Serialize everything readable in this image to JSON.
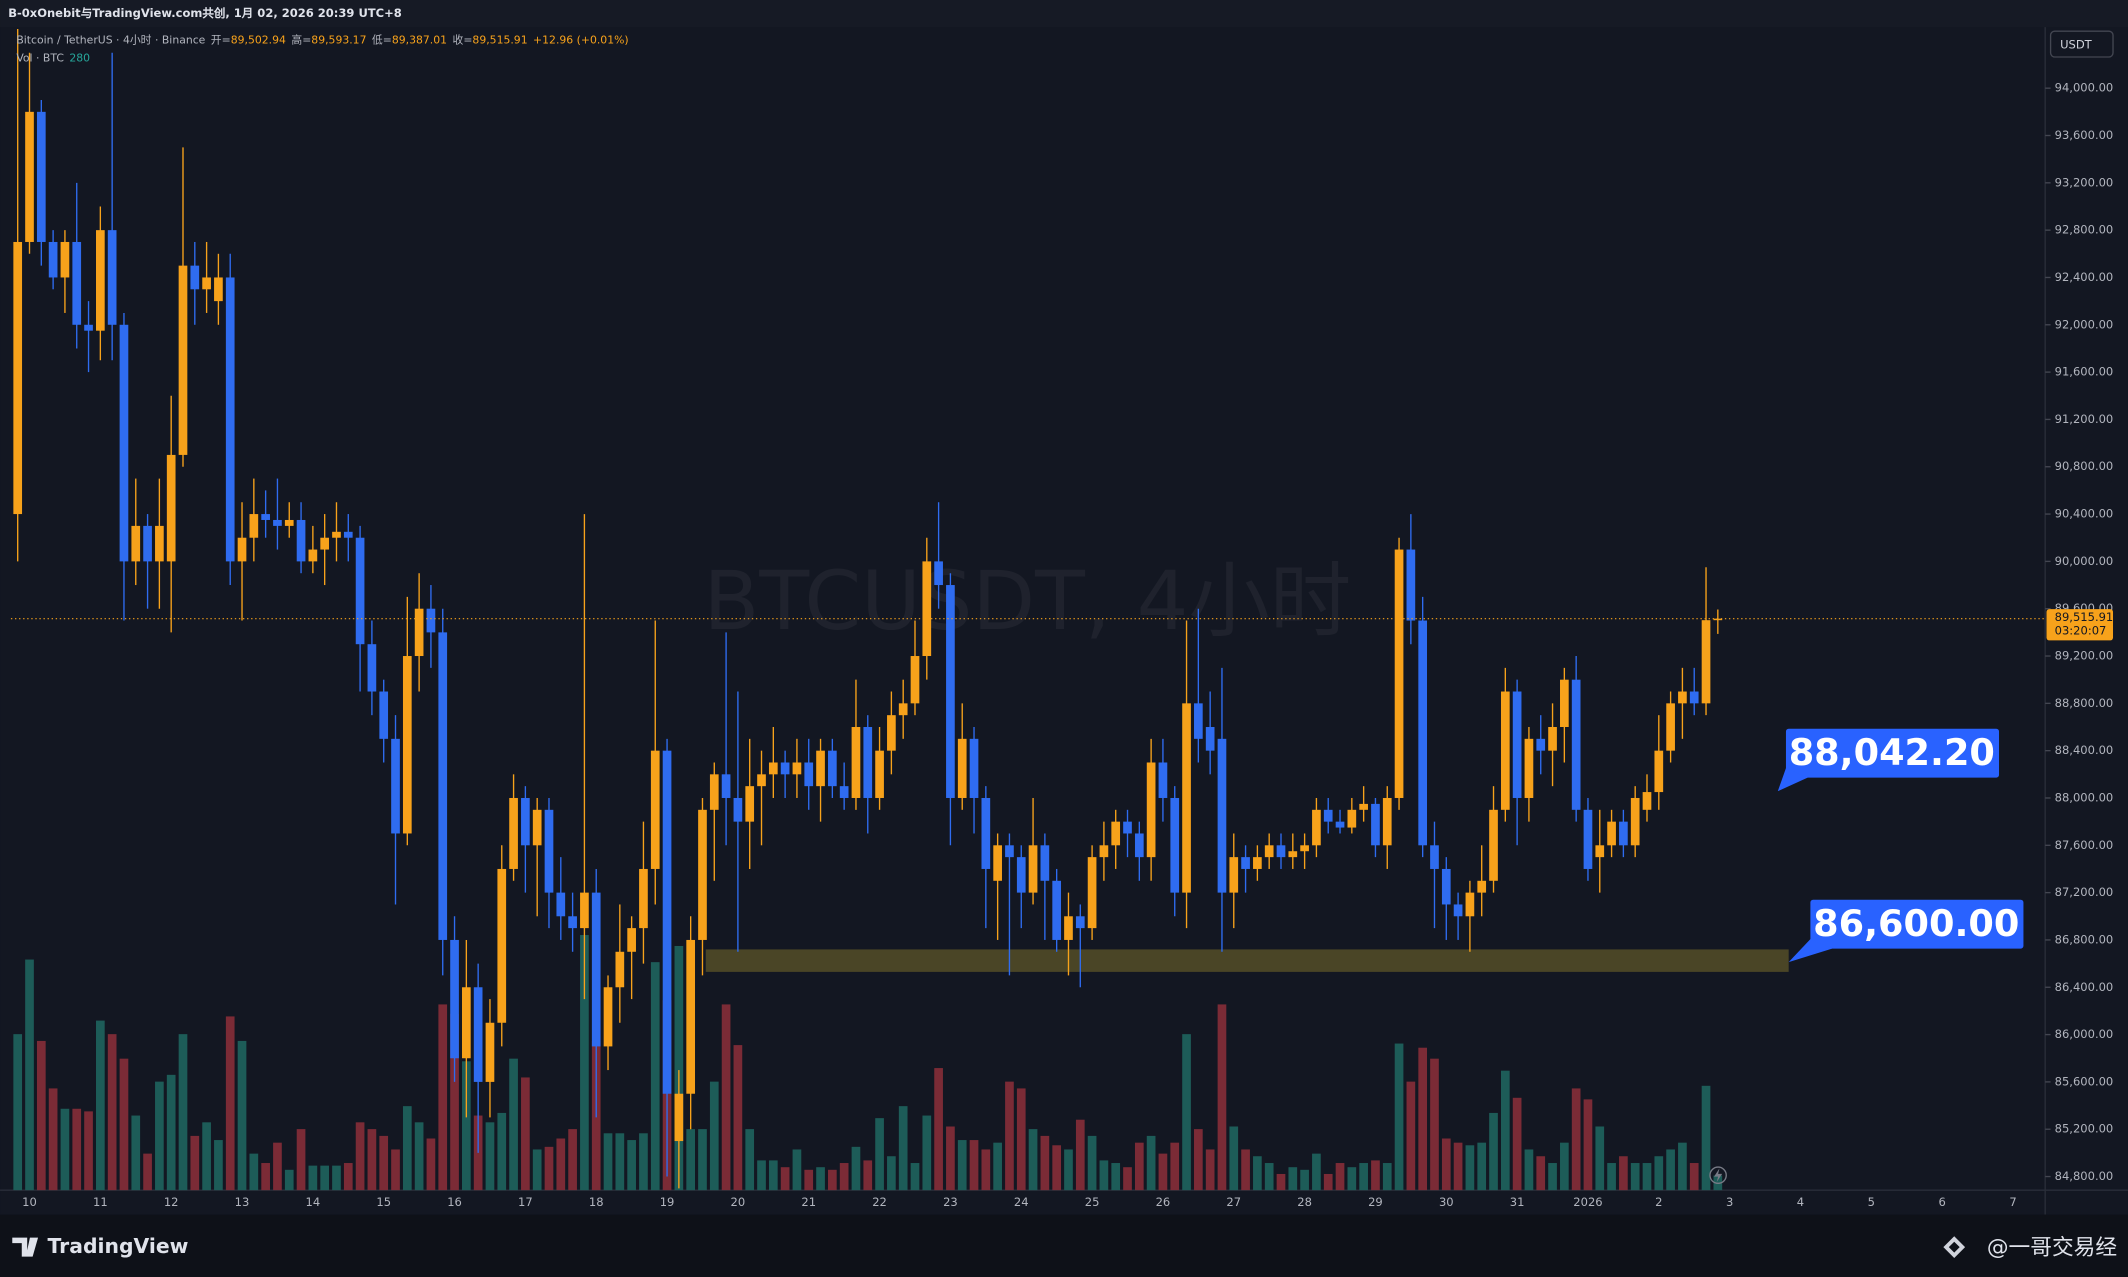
{
  "header": {
    "title": "B-0xOnebit与TradingView.com共创, 1月 02, 2026 20:39 UTC+8"
  },
  "footer": {
    "brand": "TradingView",
    "author": "@一哥交易经"
  },
  "chart_data": {
    "type": "candlestick",
    "symbol": "Bitcoin / TetherUS · 4小时 · Binance",
    "ohlc_legend": [
      {
        "label": "开=",
        "value": "89,502.94"
      },
      {
        "label": "高=",
        "value": "89,593.17"
      },
      {
        "label": "低=",
        "value": "89,387.01"
      },
      {
        "label": "收=",
        "value": "89,515.91"
      }
    ],
    "change": "+12.96 (+0.01%)",
    "volume_legend": "Vol · BTC",
    "volume_label": "280",
    "watermark": "BTCUSDT, 4小时",
    "currency": "USDT",
    "up_color": "#f7a21b",
    "down_color": "#2f6cf0",
    "volume_up_color": "#1d5c58",
    "volume_down_color": "#7b2b36",
    "categories": [
      null,
      "10",
      null,
      null,
      null,
      null,
      null,
      "11",
      null,
      null,
      null,
      null,
      null,
      "12",
      null,
      null,
      null,
      null,
      null,
      "13",
      null,
      null,
      null,
      null,
      null,
      "14",
      null,
      null,
      null,
      null,
      null,
      "15",
      null,
      null,
      null,
      null,
      null,
      "16",
      null,
      null,
      null,
      null,
      null,
      "17",
      null,
      null,
      null,
      null,
      null,
      "18",
      null,
      null,
      null,
      null,
      null,
      "19",
      null,
      null,
      null,
      null,
      null,
      "20",
      null,
      null,
      null,
      null,
      null,
      "21",
      null,
      null,
      null,
      null,
      null,
      "22",
      null,
      null,
      null,
      null,
      null,
      "23",
      null,
      null,
      null,
      null,
      null,
      "24",
      null,
      null,
      null,
      null,
      null,
      "25",
      null,
      null,
      null,
      null,
      null,
      "26",
      null,
      null,
      null,
      null,
      null,
      "27",
      null,
      null,
      null,
      null,
      null,
      "28",
      null,
      null,
      null,
      null,
      null,
      "29",
      null,
      null,
      null,
      null,
      null,
      "30",
      null,
      null,
      null,
      null,
      null,
      "31",
      null,
      null,
      null,
      null,
      null,
      "2026",
      null,
      null,
      null,
      null,
      null,
      "2",
      null,
      null,
      null,
      null,
      null,
      "3",
      null,
      null,
      null,
      null,
      null,
      "4",
      null,
      null,
      null,
      null,
      null,
      "5",
      null,
      null,
      null,
      null,
      null,
      "6",
      null,
      null,
      null,
      null,
      null,
      "7"
    ],
    "open": [
      90400,
      92700,
      93800,
      92700,
      92400,
      92700,
      92000,
      91950,
      92800,
      92000,
      90000,
      90300,
      90000,
      90000,
      90900,
      92500,
      92300,
      92200,
      92400,
      90000,
      90200,
      90400,
      90350,
      90300,
      90350,
      90000,
      90100,
      90200,
      90250,
      90200,
      89300,
      88900,
      88500,
      87700,
      89200,
      89600,
      89400,
      86800,
      85800,
      86400,
      85600,
      86100,
      87400,
      88000,
      87600,
      87900,
      87200,
      87000,
      86900,
      87200,
      85900,
      86400,
      86700,
      86900,
      87400,
      88400,
      85100,
      85500,
      86800,
      87900,
      88200,
      88000,
      87800,
      88100,
      88200,
      88300,
      88200,
      88300,
      88100,
      88400,
      88100,
      88000,
      88600,
      88000,
      88400,
      88700,
      88800,
      89200,
      90000,
      89800,
      88000,
      88500,
      88000,
      87300,
      87600,
      87500,
      87200,
      87600,
      87300,
      86800,
      87000,
      86900,
      87500,
      87600,
      87800,
      87700,
      87500,
      88300,
      88000,
      87200,
      88800,
      88600,
      88500,
      87200,
      87500,
      87400,
      87500,
      87600,
      87500,
      87550,
      87600,
      87900,
      87800,
      87750,
      87900,
      87950,
      87600,
      88000,
      90100,
      89500,
      87600,
      87400,
      87100,
      87000,
      87200,
      87300,
      87900,
      88900,
      88000,
      88500,
      88400,
      88600,
      89000,
      87900,
      87500,
      87600,
      87800,
      87600,
      87900,
      88050,
      88400,
      88800,
      88900,
      88800,
      89502.94,
      null,
      null,
      null,
      null,
      null,
      null,
      null,
      null,
      null,
      null,
      null,
      null,
      null,
      null,
      null,
      null,
      null,
      null,
      null,
      null,
      null,
      null,
      null,
      null,
      null
    ],
    "high": [
      94500,
      94300,
      93900,
      92800,
      92800,
      93200,
      92200,
      93000,
      94300,
      92100,
      90700,
      90400,
      90700,
      91400,
      93500,
      92700,
      92700,
      92600,
      92600,
      90500,
      90700,
      90600,
      90700,
      90500,
      90500,
      90300,
      90400,
      90500,
      90400,
      90300,
      89500,
      89000,
      88700,
      89700,
      89900,
      89800,
      89600,
      87000,
      86800,
      86600,
      86300,
      87600,
      88200,
      88100,
      88000,
      88000,
      87500,
      87200,
      90400,
      87400,
      86500,
      87100,
      87000,
      87800,
      89500,
      88500,
      85700,
      87000,
      88000,
      88300,
      89400,
      88900,
      88500,
      88400,
      88600,
      88400,
      88500,
      88500,
      88500,
      88500,
      88300,
      89000,
      88700,
      88600,
      88900,
      89000,
      89500,
      90200,
      90500,
      89900,
      88800,
      88600,
      88100,
      87700,
      87700,
      87600,
      88000,
      87700,
      87400,
      87200,
      87100,
      87600,
      87800,
      87900,
      87900,
      87800,
      88500,
      88500,
      88100,
      89500,
      89600,
      88900,
      89100,
      87700,
      87600,
      87600,
      87700,
      87700,
      87700,
      87700,
      88000,
      88000,
      87900,
      88000,
      88100,
      88000,
      88100,
      90200,
      90400,
      89700,
      87800,
      87500,
      87200,
      87300,
      87600,
      88100,
      89100,
      89000,
      88600,
      88700,
      88800,
      89100,
      89200,
      88000,
      87900,
      87900,
      87900,
      88100,
      88200,
      88700,
      88900,
      89100,
      89100,
      89950,
      89593.17,
      null,
      null,
      null,
      null,
      null,
      null,
      null,
      null,
      null,
      null,
      null,
      null,
      null,
      null,
      null,
      null,
      null,
      null,
      null,
      null,
      null,
      null,
      null,
      null,
      null
    ],
    "low": [
      90000,
      92600,
      92500,
      92300,
      92100,
      91800,
      91600,
      91700,
      91700,
      89500,
      89800,
      89600,
      89600,
      89400,
      90800,
      92000,
      92100,
      92000,
      89800,
      89500,
      90000,
      90200,
      90100,
      90200,
      89900,
      89900,
      89800,
      90000,
      90000,
      88900,
      88700,
      88300,
      87100,
      87600,
      88900,
      89100,
      86500,
      85600,
      85300,
      85000,
      85300,
      85900,
      87300,
      87200,
      87000,
      86900,
      86800,
      86700,
      86300,
      85300,
      85700,
      86100,
      86300,
      86600,
      87100,
      84800,
      84700,
      85200,
      86500,
      87300,
      87600,
      86700,
      87400,
      87600,
      88000,
      88000,
      88000,
      87900,
      87800,
      88000,
      87900,
      87900,
      87700,
      87900,
      88200,
      88500,
      88700,
      89000,
      89600,
      87600,
      87900,
      87700,
      86900,
      86800,
      86500,
      86900,
      87100,
      86800,
      86700,
      86500,
      86400,
      86800,
      87300,
      87400,
      87500,
      87300,
      87300,
      87800,
      87000,
      86900,
      88300,
      88200,
      86700,
      86900,
      87200,
      87300,
      87400,
      87400,
      87400,
      87400,
      87500,
      87700,
      87700,
      87700,
      87800,
      87500,
      87400,
      87900,
      89300,
      87500,
      86900,
      86800,
      86800,
      86700,
      87000,
      87200,
      87800,
      87600,
      87800,
      88200,
      88100,
      88300,
      87800,
      87300,
      87200,
      87500,
      87500,
      87500,
      87800,
      87900,
      88300,
      88500,
      88700,
      88700,
      89387.01,
      null,
      null,
      null,
      null,
      null,
      null,
      null,
      null,
      null,
      null,
      null,
      null,
      null,
      null,
      null,
      null,
      null,
      null,
      null,
      null,
      null,
      null,
      null,
      null,
      null
    ],
    "close": [
      92700,
      93800,
      92700,
      92400,
      92700,
      92000,
      91950,
      92800,
      92000,
      90000,
      90300,
      90000,
      90300,
      90900,
      92500,
      92300,
      92400,
      92400,
      90000,
      90200,
      90400,
      90350,
      90300,
      90350,
      90000,
      90100,
      90200,
      90250,
      90200,
      89300,
      88900,
      88500,
      87700,
      89200,
      89600,
      89400,
      86800,
      85800,
      86400,
      85600,
      86100,
      87400,
      88000,
      87600,
      87900,
      87200,
      87000,
      86900,
      87200,
      85900,
      86400,
      86700,
      86900,
      87400,
      88400,
      85500,
      85500,
      86800,
      87900,
      88200,
      88000,
      87800,
      88100,
      88200,
      88300,
      88200,
      88300,
      88100,
      88400,
      88100,
      88000,
      88600,
      88000,
      88400,
      88700,
      88800,
      89200,
      90000,
      89800,
      88000,
      88500,
      88000,
      87400,
      87600,
      87500,
      87200,
      87600,
      87300,
      86800,
      87000,
      86900,
      87500,
      87600,
      87800,
      87700,
      87500,
      88300,
      88000,
      87200,
      88800,
      88500,
      88400,
      87200,
      87500,
      87400,
      87500,
      87600,
      87500,
      87550,
      87600,
      87900,
      87800,
      87750,
      87900,
      87950,
      87600,
      88000,
      90100,
      89500,
      87600,
      87400,
      87100,
      87000,
      87200,
      87300,
      87900,
      88900,
      88000,
      88500,
      88400,
      88600,
      89000,
      87900,
      87400,
      87600,
      87800,
      87600,
      88000,
      88050,
      88400,
      88800,
      88900,
      88800,
      89503,
      89515.91,
      null,
      null,
      null,
      null,
      null,
      null,
      null,
      null,
      null,
      null,
      null,
      null,
      null,
      null,
      null,
      null,
      null,
      null,
      null,
      null,
      null,
      null,
      null,
      null,
      null
    ],
    "volume": [
      2990,
      4420,
      2860,
      1950,
      1560,
      1560,
      1510,
      3250,
      2990,
      2520,
      1430,
      700,
      2080,
      2210,
      2990,
      1040,
      1300,
      960,
      3330,
      2860,
      700,
      520,
      910,
      390,
      1170,
      470,
      470,
      470,
      520,
      1300,
      1170,
      1040,
      780,
      1610,
      1300,
      990,
      3560,
      3380,
      2470,
      1430,
      1300,
      1480,
      2520,
      2160,
      780,
      830,
      990,
      1170,
      4890,
      2860,
      1090,
      1090,
      960,
      1090,
      4370,
      3640,
      4680,
      1170,
      1170,
      2080,
      3560,
      2780,
      1170,
      570,
      570,
      440,
      780,
      390,
      440,
      390,
      520,
      830,
      570,
      1380,
      650,
      1610,
      520,
      1430,
      2340,
      1220,
      960,
      960,
      780,
      910,
      2080,
      1950,
      1170,
      1040,
      860,
      780,
      1350,
      1040,
      570,
      520,
      440,
      910,
      1040,
      700,
      910,
      2990,
      1170,
      780,
      3560,
      1220,
      780,
      650,
      520,
      310,
      440,
      390,
      700,
      310,
      520,
      440,
      520,
      570,
      520,
      2810,
      2080,
      2730,
      2520,
      990,
      910,
      860,
      910,
      1480,
      2290,
      1770,
      780,
      650,
      520,
      910,
      1950,
      1740,
      1220,
      520,
      650,
      520,
      520,
      650,
      780,
      910,
      520,
      2000,
      280,
      null,
      null,
      null,
      null,
      null,
      null,
      null,
      null,
      null,
      null,
      null,
      null,
      null,
      null,
      null,
      null,
      null,
      null,
      null,
      null,
      null,
      null,
      null,
      null,
      null
    ],
    "ylim": [
      84685,
      94516
    ],
    "yticks": [
      {
        "value": 84800,
        "label": "84,800.00"
      },
      {
        "value": 85200,
        "label": "85,200.00"
      },
      {
        "value": 85600,
        "label": "85,600.00"
      },
      {
        "value": 86000,
        "label": "86,000.00"
      },
      {
        "value": 86400,
        "label": "86,400.00"
      },
      {
        "value": 86800,
        "label": "86,800.00"
      },
      {
        "value": 87200,
        "label": "87,200.00"
      },
      {
        "value": 87600,
        "label": "87,600.00"
      },
      {
        "value": 88000,
        "label": "88,000.00"
      },
      {
        "value": 88400,
        "label": "88,400.00"
      },
      {
        "value": 88800,
        "label": "88,800.00"
      },
      {
        "value": 89200,
        "label": "89,200.00"
      },
      {
        "value": 89600,
        "label": "89,600.00"
      },
      {
        "value": 90000,
        "label": "90,000.00"
      },
      {
        "value": 90400,
        "label": "90,400.00"
      },
      {
        "value": 90800,
        "label": "90,800.00"
      },
      {
        "value": 91200,
        "label": "91,200.00"
      },
      {
        "value": 91600,
        "label": "91,600.00"
      },
      {
        "value": 92000,
        "label": "92,000.00"
      },
      {
        "value": 92400,
        "label": "92,400.00"
      },
      {
        "value": 92800,
        "label": "92,800.00"
      },
      {
        "value": 93200,
        "label": "93,200.00"
      },
      {
        "value": 93600,
        "label": "93,600.00"
      },
      {
        "value": 94000,
        "label": "94,000.00"
      }
    ],
    "grid": false,
    "last_price": 89515.91,
    "last_price_label": "89,515.91",
    "countdown": "03:20:07",
    "last_price_color": "#f7a21b",
    "zone": {
      "low": 86530,
      "high": 86720,
      "color": "#4a4526"
    },
    "annotations": [
      {
        "text": "88,042.20"
      },
      {
        "text": "86,600.00"
      }
    ]
  }
}
